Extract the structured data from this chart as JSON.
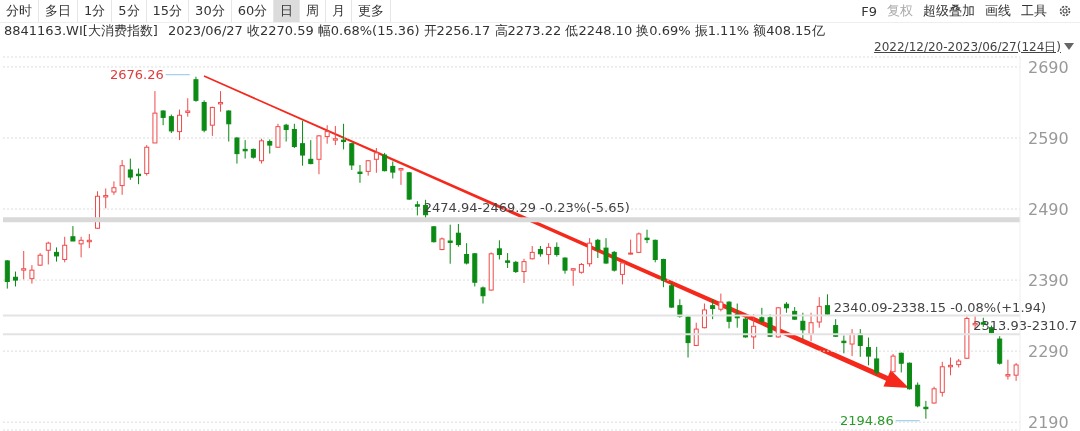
{
  "chart_data": {
    "type": "candlestick",
    "title": "8841163.WI[大消费指数]",
    "subtitle": "2023/06/27 收2270.59 幅0.68%(15.36) 开2256.17 高2273.22 低2248.10 换0.69% 振1.11% 额408.15亿",
    "annotations": [
      "分时",
      "多日",
      "1分",
      "5分",
      "15分",
      "30分",
      "60分",
      "日",
      "周",
      "月",
      "更多",
      "F9",
      "复权",
      "超级叠加",
      "画线",
      "工具",
      "2022/12/20-2023/06/27(124日)",
      "2676.26",
      "2194.86"
    ],
    "categories": [
      null,
      null,
      null,
      null,
      null,
      null,
      null,
      null,
      null,
      null,
      null,
      null,
      null,
      null,
      null,
      null,
      null,
      null,
      null,
      null,
      null,
      null,
      null,
      null,
      null,
      null,
      null,
      null,
      null,
      null,
      null,
      null,
      null,
      null,
      null,
      null,
      null,
      null,
      null,
      null,
      null,
      null,
      null,
      null,
      null,
      null,
      null,
      null,
      null,
      null,
      null,
      null,
      null,
      null,
      null,
      null,
      null,
      null,
      null,
      null,
      null,
      null,
      null,
      null,
      null,
      null,
      null,
      null,
      null,
      null,
      null,
      null,
      null,
      null,
      null,
      null,
      null,
      null,
      null,
      null,
      null,
      null,
      null,
      null,
      null,
      null,
      null,
      null,
      null,
      null,
      null,
      null,
      null,
      null,
      null,
      null,
      null,
      null,
      null,
      null,
      null,
      null,
      null,
      null,
      null,
      null,
      null,
      null,
      null,
      null,
      null,
      null,
      null,
      null,
      null,
      null,
      null,
      null,
      null,
      null,
      null,
      null,
      null,
      null
    ],
    "ohlc": [
      [
        2417,
        2418,
        2378,
        2388
      ],
      [
        2394,
        2402,
        2381,
        2390
      ],
      [
        2404,
        2431,
        2391,
        2406
      ],
      [
        2392,
        2411,
        2385,
        2404
      ],
      [
        2411,
        2428,
        2410,
        2425
      ],
      [
        2432,
        2444,
        2412,
        2442
      ],
      [
        2429,
        2436,
        2416,
        2424
      ],
      [
        2419,
        2451,
        2415,
        2439
      ],
      [
        2451,
        2466,
        2445,
        2445
      ],
      [
        2441,
        2451,
        2422,
        2446
      ],
      [
        2444,
        2455,
        2435,
        2446
      ],
      [
        2463,
        2515,
        2462,
        2508
      ],
      [
        2507,
        2519,
        2491,
        2509
      ],
      [
        2514,
        2529,
        2510,
        2520
      ],
      [
        2523,
        2559,
        2510,
        2551
      ],
      [
        2545,
        2561,
        2531,
        2535
      ],
      [
        2539,
        2547,
        2525,
        2537
      ],
      [
        2540,
        2580,
        2537,
        2577
      ],
      [
        2583,
        2656,
        2583,
        2625
      ],
      [
        2628,
        2629,
        2608,
        2619
      ],
      [
        2620,
        2623,
        2597,
        2600
      ],
      [
        2599,
        2630,
        2587,
        2622
      ],
      [
        2626,
        2646,
        2620,
        2628
      ],
      [
        2672,
        2676.26,
        2641,
        2643
      ],
      [
        2640,
        2643,
        2598,
        2601
      ],
      [
        2608,
        2634,
        2593,
        2633
      ],
      [
        2638,
        2656,
        2627,
        2640
      ],
      [
        2628,
        2629,
        2585,
        2610
      ],
      [
        2590,
        2591,
        2554,
        2568
      ],
      [
        2574,
        2587,
        2561,
        2572
      ],
      [
        2574,
        2575,
        2561,
        2563
      ],
      [
        2558,
        2589,
        2554,
        2586
      ],
      [
        2585,
        2588,
        2568,
        2580
      ],
      [
        2577,
        2610,
        2576,
        2606
      ],
      [
        2608,
        2610,
        2585,
        2602
      ],
      [
        2602,
        2610,
        2576,
        2578
      ],
      [
        2582,
        2614,
        2551,
        2566
      ],
      [
        2560,
        2587,
        2553,
        2554
      ],
      [
        2560,
        2594,
        2539,
        2593
      ],
      [
        2592,
        2608,
        2582,
        2599
      ],
      [
        2587,
        2607,
        2580,
        2589
      ],
      [
        2587,
        2610,
        2574,
        2585
      ],
      [
        2582,
        2583,
        2545,
        2552
      ],
      [
        2542,
        2552,
        2527,
        2540
      ],
      [
        2543,
        2559,
        2537,
        2558
      ],
      [
        2560,
        2576,
        2541,
        2569
      ],
      [
        2566,
        2569,
        2543,
        2544
      ],
      [
        2550,
        2557,
        2533,
        2542
      ],
      [
        2545,
        2548,
        2524,
        2547
      ],
      [
        2541,
        2542,
        2503,
        2504
      ],
      [
        2496,
        2501,
        2481,
        2494
      ],
      [
        2495,
        2503,
        2476,
        2482
      ],
      [
        2465,
        2466,
        2443,
        2444
      ],
      [
        2433,
        2450,
        2432,
        2448
      ],
      [
        2445,
        2468,
        2413,
        2443
      ],
      [
        2456,
        2469,
        2437,
        2440
      ],
      [
        2426,
        2442,
        2412,
        2414
      ],
      [
        2427,
        2428,
        2381,
        2387
      ],
      [
        2379,
        2381,
        2357,
        2368
      ],
      [
        2376,
        2429,
        2375,
        2427
      ],
      [
        2434,
        2446,
        2419,
        2426
      ],
      [
        2417,
        2428,
        2407,
        2415
      ],
      [
        2415,
        2417,
        2400,
        2402
      ],
      [
        2402,
        2420,
        2386,
        2416
      ],
      [
        2420,
        2438,
        2419,
        2429
      ],
      [
        2433,
        2438,
        2423,
        2427
      ],
      [
        2426,
        2442,
        2412,
        2436
      ],
      [
        2436,
        2443,
        2423,
        2426
      ],
      [
        2421,
        2422,
        2399,
        2404
      ],
      [
        2404,
        2407,
        2382,
        2406
      ],
      [
        2401,
        2414,
        2399,
        2412
      ],
      [
        2413,
        2449,
        2409,
        2442
      ],
      [
        2446,
        2448,
        2421,
        2433
      ],
      [
        2435,
        2449,
        2413,
        2414
      ],
      [
        2429,
        2431,
        2402,
        2404
      ],
      [
        2398,
        2416,
        2384,
        2414
      ],
      [
        2427,
        2447,
        2426,
        2428
      ],
      [
        2429,
        2457,
        2428,
        2455
      ],
      [
        2449,
        2461,
        2442,
        2447
      ],
      [
        2446,
        2447,
        2415,
        2419
      ],
      [
        2419,
        2420,
        2380,
        2390
      ],
      [
        2382,
        2386,
        2351,
        2352
      ],
      [
        2354,
        2363,
        2337,
        2339
      ],
      [
        2338,
        2339,
        2281,
        2302
      ],
      [
        2298,
        2330,
        2297,
        2321
      ],
      [
        2323,
        2357,
        2322,
        2348
      ],
      [
        2354,
        2363,
        2335,
        2350
      ],
      [
        2349,
        2371,
        2346,
        2359
      ],
      [
        2359,
        2360,
        2322,
        2332
      ],
      [
        2342,
        2357,
        2323,
        2337
      ],
      [
        2335,
        2337,
        2309,
        2310
      ],
      [
        2310,
        2342,
        2293,
        2325
      ],
      [
        2337,
        2351,
        2329,
        2332
      ],
      [
        2337,
        2342,
        2310,
        2311
      ],
      [
        2310,
        2352,
        2309,
        2351
      ],
      [
        2356,
        2359,
        2344,
        2351
      ],
      [
        2346,
        2352,
        2334,
        2335
      ],
      [
        2332,
        2344,
        2307,
        2320
      ],
      [
        2314,
        2344,
        2304,
        2330
      ],
      [
        2331,
        2366,
        2323,
        2353
      ],
      [
        2354,
        2370,
        2340,
        2342
      ],
      [
        2326,
        2335,
        2310,
        2311
      ],
      [
        2304,
        2312,
        2287,
        2302
      ],
      [
        2300,
        2321,
        2283,
        2314
      ],
      [
        2314,
        2321,
        2282,
        2298
      ],
      [
        2295,
        2309,
        2270,
        2283
      ],
      [
        2279,
        2296,
        2257,
        2260
      ],
      null,
      [
        2261,
        2286,
        2260,
        2283
      ],
      [
        2287,
        2288,
        2260,
        2273
      ],
      [
        2273,
        2274,
        2236,
        2237
      ],
      [
        2242,
        2246,
        2211,
        2213
      ],
      [
        2211,
        2220,
        2194.86,
        2209
      ],
      [
        2217,
        2240,
        2216,
        2237
      ],
      [
        2232,
        2275,
        2226,
        2268
      ],
      [
        2268,
        2281,
        2256,
        2270
      ],
      [
        2271,
        2279,
        2267,
        2276
      ],
      [
        2280,
        2339,
        2279,
        2336
      ],
      [
        2327,
        2339,
        2321,
        2329
      ],
      [
        2330,
        2337,
        2324,
        2328
      ],
      [
        2323,
        2326,
        2315,
        2316
      ],
      [
        2307,
        2311,
        2271,
        2273
      ],
      [
        2255,
        2278,
        2250,
        2257
      ],
      [
        2256.17,
        2273.22,
        2248.1,
        2270.59
      ]
    ],
    "ref_lines": [
      {
        "axis": "y",
        "value": 2474.94,
        "label": "2474.94-2469.29 -0.23%(-5.65)",
        "color": "#d9d9d9"
      },
      {
        "axis": "y",
        "value": 2340.09,
        "label": "2340.09-2338.15 -0.08%(+1.94)",
        "color": "#e3e3e3"
      },
      {
        "axis": "y",
        "value": 2313.93,
        "label": "2313.93-2310.7",
        "color": "#e3e3e3"
      }
    ],
    "ylim": [
      2179,
      2704
    ],
    "yticks": [
      2190,
      2290,
      2390,
      2490,
      2590,
      2690
    ],
    "grid": "y",
    "legend": false
  }
}
